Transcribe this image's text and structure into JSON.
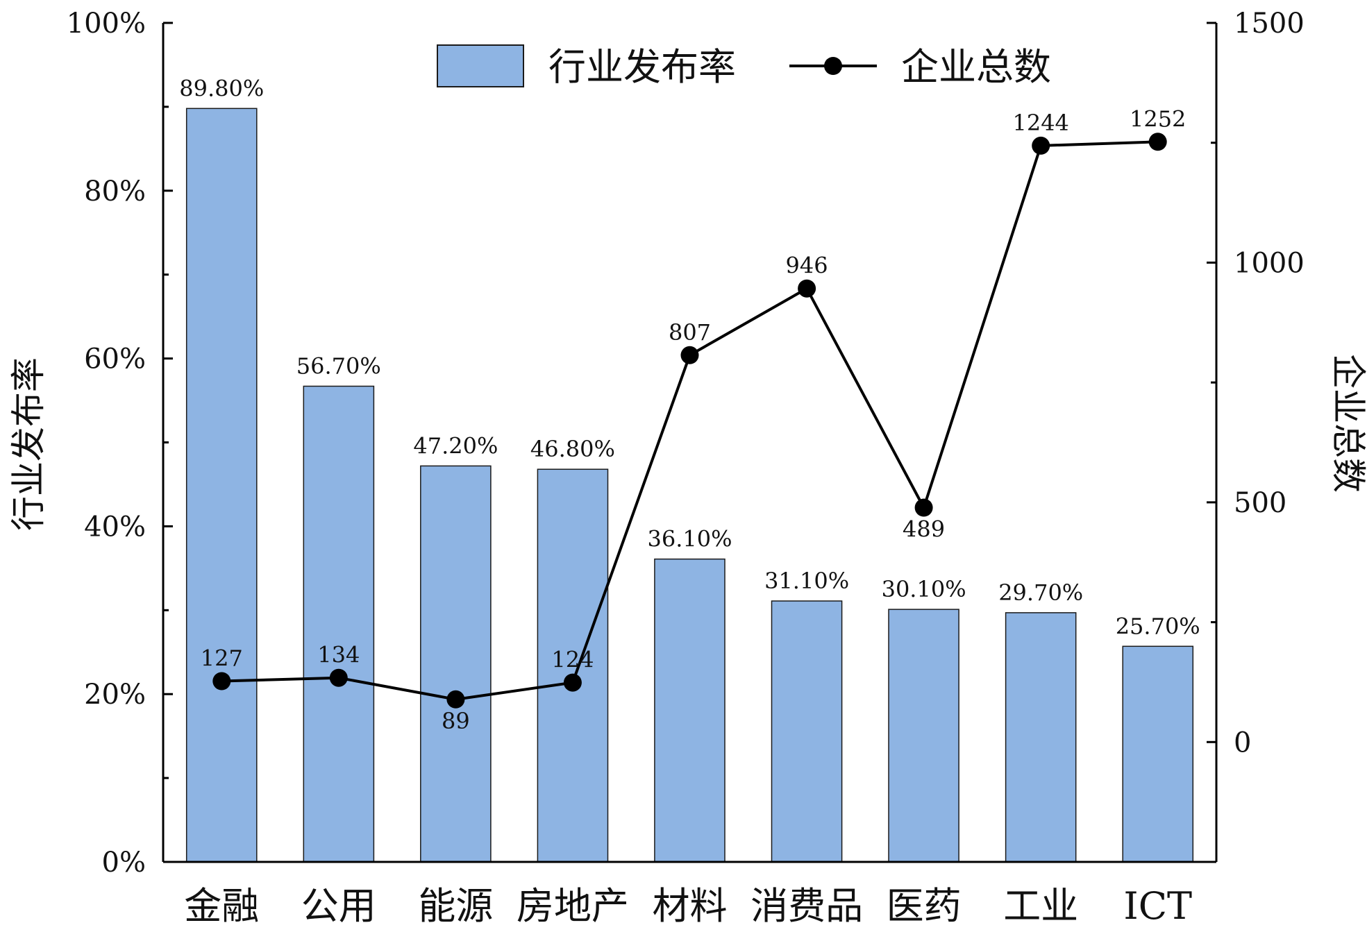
{
  "chart_data": {
    "type": "bar",
    "categories": [
      "金融",
      "公用",
      "能源",
      "房地产",
      "材料",
      "消费品",
      "医药",
      "工业",
      "ICT"
    ],
    "series": [
      {
        "name": "行业发布率",
        "type": "bar",
        "axis": "left",
        "values": [
          89.8,
          56.7,
          47.2,
          46.8,
          36.1,
          31.1,
          30.1,
          29.7,
          25.7
        ],
        "labels": [
          "89.80%",
          "56.70%",
          "47.20%",
          "46.80%",
          "36.10%",
          "31.10%",
          "30.10%",
          "29.70%",
          "25.70%"
        ],
        "color": "#8eb4e3"
      },
      {
        "name": "企业总数",
        "type": "line",
        "axis": "right",
        "values": [
          127,
          134,
          89,
          124,
          807,
          946,
          489,
          1244,
          1252
        ],
        "labels": [
          "127",
          "134",
          "89",
          "124",
          "807",
          "946",
          "489",
          "1244",
          "1252"
        ],
        "color": "#000000"
      }
    ],
    "ylabel": "行业发布率",
    "y2label": "企业总数",
    "ylim": [
      0,
      100
    ],
    "y2lim": [
      -250,
      1500
    ],
    "yticks": [
      "0%",
      "20%",
      "40%",
      "60%",
      "80%",
      "100%"
    ],
    "y2ticks": [
      "0",
      "500",
      "1000",
      "1500"
    ],
    "legend_position": "top-center",
    "grid": false
  }
}
